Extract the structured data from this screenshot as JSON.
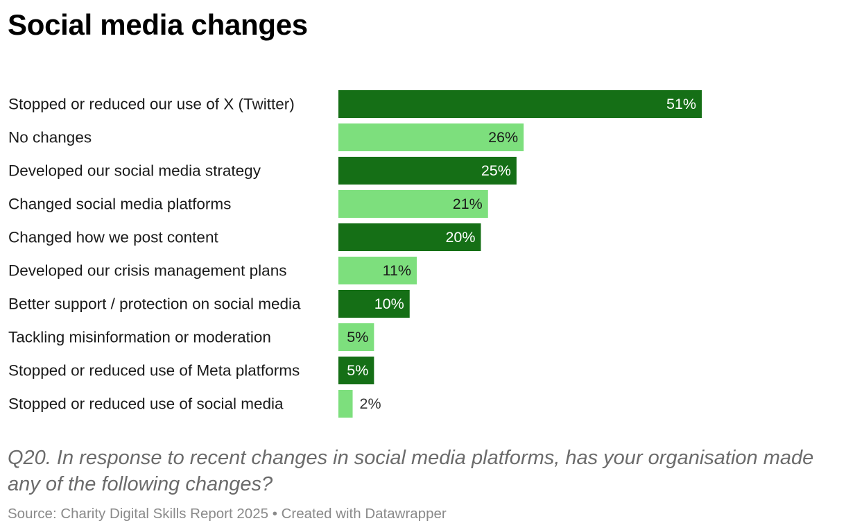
{
  "chart_data": {
    "type": "bar",
    "orientation": "horizontal",
    "title": "Social media changes",
    "categories": [
      "Stopped or reduced our use of X (Twitter)",
      "No changes",
      "Developed our social media strategy",
      "Changed social media platforms",
      "Changed how we post content",
      "Developed our crisis management plans",
      "Better support / protection on social media",
      "Tackling misinformation or moderation",
      "Stopped or reduced use of Meta platforms",
      "Stopped or reduced use of social media"
    ],
    "values": [
      51,
      26,
      25,
      21,
      20,
      11,
      10,
      5,
      5,
      2
    ],
    "value_labels": [
      "51%",
      "26%",
      "25%",
      "21%",
      "20%",
      "11%",
      "10%",
      "5%",
      "5%",
      "2%"
    ],
    "unit": "%",
    "xlim": [
      0,
      100
    ],
    "grid": false,
    "colors": {
      "dark": "#156f16",
      "light": "#7ddf7d",
      "text_on_dark": "#ffffff",
      "text_on_light": "#1a1a1a",
      "outside_text": "#333333"
    },
    "note": "Q20. In response to recent changes in social media platforms, has your organisation made any of the following changes?",
    "source": "Source: Charity Digital Skills Report 2025 • Created with Datawrapper"
  }
}
